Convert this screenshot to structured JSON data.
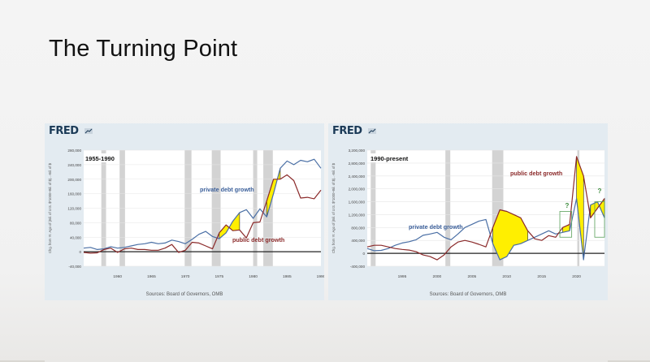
{
  "slide": {
    "title": "The Turning Point"
  },
  "logo": {
    "text": "FRED"
  },
  "chart_data": [
    {
      "type": "line",
      "title": "1955-1990",
      "ylabel": "Chg. from Yr. Ago of (Bil. of U.S. $*1000+Bil. of $)...-Bil. of $",
      "source": "Sources: Board of Governors, OMB",
      "xlim": [
        1955,
        1990
      ],
      "ylim": [
        -40000,
        280000
      ],
      "x_ticks": [
        "1960",
        "1965",
        "1970",
        "1975",
        "1980",
        "1985",
        "1990"
      ],
      "x_tick_values": [
        1960,
        1965,
        1970,
        1975,
        1980,
        1985,
        1990
      ],
      "y_ticks": [
        "280,000",
        "240,000",
        "200,000",
        "160,000",
        "120,000",
        "80,000",
        "40,000",
        "0",
        "-40,000"
      ],
      "y_tick_values": [
        280000,
        240000,
        200000,
        160000,
        120000,
        80000,
        40000,
        0,
        -40000
      ],
      "recessions": [
        [
          1957.6,
          1958.3
        ],
        [
          1960.3,
          1961.1
        ],
        [
          1969.9,
          1970.9
        ],
        [
          1973.9,
          1975.2
        ],
        [
          1980.0,
          1980.6
        ],
        [
          1981.5,
          1982.9
        ]
      ],
      "series": [
        {
          "name": "private debt growth",
          "color": "#4a6fa5",
          "points": [
            [
              1955,
              10000
            ],
            [
              1956,
              12000
            ],
            [
              1957,
              6000
            ],
            [
              1958,
              8000
            ],
            [
              1959,
              14000
            ],
            [
              1960,
              10000
            ],
            [
              1961,
              12000
            ],
            [
              1962,
              16000
            ],
            [
              1963,
              20000
            ],
            [
              1964,
              22000
            ],
            [
              1965,
              26000
            ],
            [
              1966,
              22000
            ],
            [
              1967,
              24000
            ],
            [
              1968,
              32000
            ],
            [
              1969,
              28000
            ],
            [
              1970,
              22000
            ],
            [
              1971,
              34000
            ],
            [
              1972,
              48000
            ],
            [
              1973,
              56000
            ],
            [
              1974,
              42000
            ],
            [
              1975,
              36000
            ],
            [
              1976,
              52000
            ],
            [
              1977,
              84000
            ],
            [
              1978,
              108000
            ],
            [
              1979,
              116000
            ],
            [
              1980,
              92000
            ],
            [
              1981,
              118000
            ],
            [
              1982,
              96000
            ],
            [
              1983,
              160000
            ],
            [
              1984,
              230000
            ],
            [
              1985,
              250000
            ],
            [
              1986,
              240000
            ],
            [
              1987,
              252000
            ],
            [
              1988,
              248000
            ],
            [
              1989,
              255000
            ],
            [
              1990,
              230000
            ]
          ]
        },
        {
          "name": "public debt growth",
          "color": "#8b2a2a",
          "points": [
            [
              1955,
              -2000
            ],
            [
              1956,
              -4000
            ],
            [
              1957,
              -3000
            ],
            [
              1958,
              6000
            ],
            [
              1959,
              10000
            ],
            [
              1960,
              -2000
            ],
            [
              1961,
              8000
            ],
            [
              1962,
              10000
            ],
            [
              1963,
              6000
            ],
            [
              1964,
              6000
            ],
            [
              1965,
              4000
            ],
            [
              1966,
              4000
            ],
            [
              1967,
              10000
            ],
            [
              1968,
              20000
            ],
            [
              1969,
              -2000
            ],
            [
              1970,
              4000
            ],
            [
              1971,
              26000
            ],
            [
              1972,
              24000
            ],
            [
              1973,
              16000
            ],
            [
              1974,
              8000
            ],
            [
              1975,
              52000
            ],
            [
              1976,
              74000
            ],
            [
              1977,
              58000
            ],
            [
              1978,
              60000
            ],
            [
              1979,
              38000
            ],
            [
              1980,
              80000
            ],
            [
              1981,
              82000
            ],
            [
              1982,
              140000
            ],
            [
              1983,
              200000
            ],
            [
              1984,
              200000
            ],
            [
              1985,
              212000
            ],
            [
              1986,
              196000
            ],
            [
              1987,
              148000
            ],
            [
              1988,
              150000
            ],
            [
              1989,
              146000
            ],
            [
              1990,
              170000
            ]
          ]
        }
      ],
      "annotations": [
        {
          "text": "private debt growth",
          "color": "#3b5f9a"
        },
        {
          "text": "public debt growth",
          "color": "#8b2a2a"
        }
      ],
      "highlights": [
        {
          "fill": "#ffef00",
          "from": 1975,
          "to": 1978
        },
        {
          "fill": "#ffef00",
          "from": 1982,
          "to": 1984
        }
      ]
    },
    {
      "type": "line",
      "title": "1990-present",
      "ylabel": "Chg. from Yr. Ago of (Bil. of U.S. $*1000+Bil. of $)...-Bil. of $",
      "source": "Sources: Board of Governors, OMB",
      "xlim": [
        1990,
        2024
      ],
      "ylim": [
        -400000,
        3200000
      ],
      "x_ticks": [
        "1995",
        "2000",
        "2005",
        "2010",
        "2015",
        "2020"
      ],
      "x_tick_values": [
        1995,
        2000,
        2005,
        2010,
        2015,
        2020
      ],
      "y_ticks": [
        "3,200,000",
        "2,800,000",
        "2,400,000",
        "2,000,000",
        "1,600,000",
        "1,200,000",
        "800,000",
        "400,000",
        "0",
        "-400,000"
      ],
      "y_tick_values": [
        3200000,
        2800000,
        2400000,
        2000000,
        1600000,
        1200000,
        800000,
        400000,
        0,
        -400000
      ],
      "recessions": [
        [
          1990.5,
          1991.2
        ],
        [
          2001.2,
          2001.9
        ],
        [
          2007.9,
          2009.5
        ],
        [
          2020.1,
          2020.4
        ]
      ],
      "series": [
        {
          "name": "private debt growth",
          "color": "#4a6fa5",
          "points": [
            [
              1990,
              150000
            ],
            [
              1991,
              80000
            ],
            [
              1992,
              90000
            ],
            [
              1993,
              150000
            ],
            [
              1994,
              250000
            ],
            [
              1995,
              320000
            ],
            [
              1996,
              360000
            ],
            [
              1997,
              420000
            ],
            [
              1998,
              560000
            ],
            [
              1999,
              600000
            ],
            [
              2000,
              650000
            ],
            [
              2001,
              500000
            ],
            [
              2002,
              420000
            ],
            [
              2003,
              600000
            ],
            [
              2004,
              800000
            ],
            [
              2005,
              900000
            ],
            [
              2006,
              1000000
            ],
            [
              2007,
              1050000
            ],
            [
              2008,
              300000
            ],
            [
              2009,
              -200000
            ],
            [
              2010,
              -100000
            ],
            [
              2011,
              250000
            ],
            [
              2012,
              300000
            ],
            [
              2013,
              400000
            ],
            [
              2014,
              500000
            ],
            [
              2015,
              600000
            ],
            [
              2016,
              700000
            ],
            [
              2017,
              600000
            ],
            [
              2018,
              650000
            ],
            [
              2019,
              700000
            ],
            [
              2020,
              1700000
            ],
            [
              2021,
              -200000
            ],
            [
              2022,
              1500000
            ],
            [
              2023,
              1600000
            ],
            [
              2024,
              1100000
            ]
          ]
        },
        {
          "name": "public debt growth",
          "color": "#8b2a2a",
          "points": [
            [
              1990,
              200000
            ],
            [
              1991,
              250000
            ],
            [
              1992,
              250000
            ],
            [
              1993,
              200000
            ],
            [
              1994,
              150000
            ],
            [
              1995,
              120000
            ],
            [
              1996,
              100000
            ],
            [
              1997,
              50000
            ],
            [
              1998,
              -50000
            ],
            [
              1999,
              -100000
            ],
            [
              2000,
              -200000
            ],
            [
              2001,
              -50000
            ],
            [
              2002,
              200000
            ],
            [
              2003,
              350000
            ],
            [
              2004,
              400000
            ],
            [
              2005,
              350000
            ],
            [
              2006,
              280000
            ],
            [
              2007,
              200000
            ],
            [
              2008,
              800000
            ],
            [
              2009,
              1350000
            ],
            [
              2010,
              1300000
            ],
            [
              2011,
              1200000
            ],
            [
              2012,
              1100000
            ],
            [
              2013,
              700000
            ],
            [
              2014,
              450000
            ],
            [
              2015,
              400000
            ],
            [
              2016,
              550000
            ],
            [
              2017,
              500000
            ],
            [
              2018,
              800000
            ],
            [
              2019,
              900000
            ],
            [
              2020,
              3000000
            ],
            [
              2021,
              2400000
            ],
            [
              2022,
              1100000
            ],
            [
              2023,
              1400000
            ],
            [
              2024,
              1700000
            ]
          ]
        }
      ],
      "annotations": [
        {
          "text": "private debt growth",
          "color": "#3b5f9a"
        },
        {
          "text": "public debt growth",
          "color": "#8b2a2a"
        },
        {
          "text": "?",
          "color": "#3a8a3a"
        },
        {
          "text": "?",
          "color": "#3a8a3a"
        }
      ],
      "highlights": [
        {
          "fill": "#ffef00",
          "from": 2008,
          "to": 2013
        },
        {
          "fill": "#ffef00",
          "from": 2018,
          "to": 2019
        },
        {
          "fill": "#ffef00",
          "from": 2020,
          "to": 2021
        },
        {
          "fill": "#ffef00",
          "from": 2022,
          "to": 2024
        }
      ]
    }
  ]
}
